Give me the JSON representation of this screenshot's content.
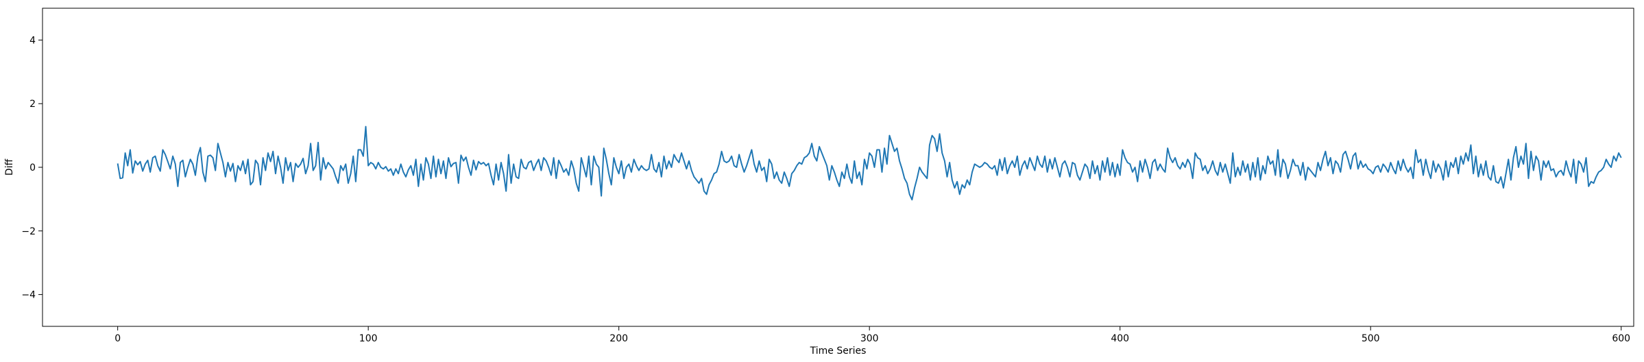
{
  "chart_data": {
    "type": "line",
    "title": "",
    "xlabel": "Time Series",
    "ylabel": "Diff",
    "xlim": [
      -30,
      605
    ],
    "ylim": [
      -5,
      5
    ],
    "xticks": [
      0,
      100,
      200,
      300,
      400,
      500,
      600
    ],
    "yticks": [
      -4,
      -2,
      0,
      2,
      4
    ],
    "grid": false,
    "legend": "none",
    "series": [
      {
        "color": "#1f77b4",
        "x_start": 0,
        "x_step": 1,
        "values": [
          0.12,
          -0.35,
          -0.33,
          0.45,
          0.05,
          0.55,
          -0.18,
          0.2,
          0.08,
          0.18,
          -0.12,
          0.1,
          0.22,
          -0.15,
          0.3,
          0.35,
          0.05,
          -0.12,
          0.55,
          0.4,
          0.18,
          -0.05,
          0.35,
          0.1,
          -0.6,
          0.15,
          0.22,
          -0.3,
          0.0,
          0.25,
          0.1,
          -0.25,
          0.35,
          0.62,
          -0.15,
          -0.45,
          0.35,
          0.38,
          0.3,
          -0.1,
          0.75,
          0.45,
          0.15,
          -0.3,
          0.15,
          -0.12,
          0.12,
          -0.45,
          0.05,
          -0.1,
          0.2,
          -0.2,
          0.25,
          -0.55,
          -0.45,
          0.22,
          0.1,
          -0.55,
          0.3,
          -0.1,
          0.45,
          0.18,
          0.5,
          -0.2,
          0.35,
          0.0,
          -0.5,
          0.3,
          -0.1,
          0.15,
          -0.45,
          0.12,
          0.0,
          0.1,
          0.28,
          -0.2,
          0.05,
          0.75,
          -0.1,
          0.05,
          0.78,
          -0.4,
          0.3,
          -0.05,
          0.15,
          0.05,
          -0.05,
          -0.3,
          -0.5,
          0.05,
          -0.1,
          0.1,
          -0.5,
          -0.2,
          0.35,
          -0.45,
          0.55,
          0.55,
          0.35,
          1.28,
          0.05,
          0.15,
          0.1,
          -0.05,
          0.15,
          0.0,
          -0.05,
          0.02,
          -0.12,
          -0.05,
          -0.25,
          -0.05,
          -0.2,
          0.1,
          -0.15,
          -0.3,
          -0.08,
          0.05,
          -0.25,
          0.25,
          -0.6,
          0.1,
          -0.4,
          0.3,
          0.1,
          -0.35,
          0.35,
          -0.3,
          0.25,
          -0.2,
          0.2,
          -0.35,
          0.3,
          0.02,
          0.12,
          0.15,
          -0.5,
          0.38,
          0.2,
          0.32,
          0.0,
          -0.25,
          0.22,
          -0.08,
          0.18,
          0.1,
          0.15,
          0.05,
          0.12,
          -0.25,
          -0.55,
          0.1,
          -0.4,
          0.15,
          -0.2,
          -0.75,
          0.4,
          -0.5,
          0.1,
          -0.3,
          -0.35,
          0.25,
          0.0,
          -0.05,
          0.15,
          0.2,
          -0.1,
          0.1,
          0.25,
          -0.1,
          0.3,
          0.2,
          0.0,
          -0.25,
          0.3,
          -0.35,
          0.22,
          0.05,
          -0.15,
          -0.05,
          -0.25,
          0.2,
          -0.05,
          -0.5,
          -0.75,
          0.3,
          0.0,
          -0.3,
          0.35,
          -0.55,
          0.35,
          0.1,
          0.0,
          -0.9,
          0.6,
          0.25,
          -0.2,
          -0.55,
          0.3,
          0.0,
          -0.2,
          0.2,
          -0.35,
          0.0,
          0.1,
          -0.15,
          0.25,
          0.05,
          -0.1,
          0.05,
          -0.05,
          -0.1,
          -0.05,
          0.4,
          -0.05,
          -0.15,
          0.15,
          -0.3,
          0.35,
          -0.05,
          0.2,
          0.0,
          0.4,
          0.25,
          0.15,
          0.45,
          0.2,
          -0.05,
          0.2,
          -0.1,
          -0.3,
          -0.4,
          -0.5,
          -0.35,
          -0.75,
          -0.85,
          -0.55,
          -0.4,
          -0.2,
          -0.15,
          0.1,
          0.5,
          0.2,
          0.15,
          0.2,
          0.35,
          0.05,
          0.0,
          0.4,
          0.1,
          -0.15,
          0.05,
          0.3,
          0.55,
          0.1,
          -0.15,
          0.2,
          -0.1,
          0.0,
          -0.45,
          0.25,
          0.1,
          -0.35,
          -0.15,
          -0.4,
          -0.5,
          -0.15,
          -0.35,
          -0.6,
          -0.2,
          -0.1,
          0.05,
          0.15,
          0.1,
          0.3,
          0.35,
          0.45,
          0.75,
          0.35,
          0.2,
          0.65,
          0.45,
          0.25,
          0.05,
          -0.4,
          0.05,
          -0.15,
          -0.4,
          -0.6,
          -0.15,
          -0.35,
          0.1,
          -0.3,
          -0.5,
          0.2,
          -0.35,
          -0.15,
          -0.55,
          0.25,
          -0.05,
          0.45,
          0.35,
          0.0,
          0.55,
          0.55,
          -0.15,
          0.6,
          0.1,
          1.0,
          0.75,
          0.5,
          0.6,
          0.2,
          -0.05,
          -0.35,
          -0.5,
          -0.85,
          -1.02,
          -0.65,
          -0.35,
          0.0,
          -0.15,
          -0.25,
          -0.35,
          0.7,
          1.0,
          0.9,
          0.5,
          1.05,
          0.45,
          0.2,
          -0.3,
          0.15,
          -0.4,
          -0.65,
          -0.45,
          -0.85,
          -0.55,
          -0.65,
          -0.4,
          -0.55,
          -0.15,
          0.1,
          0.05,
          0.0,
          0.05,
          0.15,
          0.1,
          0.0,
          -0.05,
          0.05,
          -0.25,
          0.25,
          -0.1,
          0.3,
          -0.2,
          0.05,
          0.2,
          0.0,
          0.35,
          -0.25,
          0.05,
          0.2,
          -0.05,
          0.3,
          0.1,
          -0.1,
          0.35,
          0.1,
          0.0,
          0.35,
          -0.15,
          0.25,
          -0.05,
          0.3,
          0.0,
          -0.3,
          0.1,
          0.2,
          0.0,
          -0.3,
          0.15,
          0.1,
          -0.25,
          -0.4,
          -0.15,
          0.1,
          0.0,
          -0.35,
          0.2,
          -0.2,
          0.05,
          -0.4,
          0.2,
          -0.15,
          0.3,
          -0.25,
          0.15,
          -0.3,
          0.1,
          -0.25,
          0.55,
          0.3,
          0.15,
          0.1,
          -0.15,
          0.0,
          -0.45,
          0.2,
          -0.15,
          0.25,
          0.0,
          -0.35,
          0.15,
          0.25,
          -0.1,
          0.1,
          -0.05,
          -0.15,
          0.6,
          0.3,
          0.15,
          0.3,
          0.05,
          -0.05,
          0.15,
          0.0,
          0.25,
          0.1,
          -0.35,
          0.45,
          0.3,
          0.25,
          -0.1,
          0.05,
          -0.2,
          -0.05,
          0.2,
          -0.1,
          -0.25,
          0.15,
          -0.15,
          0.1,
          -0.2,
          -0.5,
          0.45,
          -0.3,
          0.0,
          -0.25,
          0.2,
          -0.15,
          0.1,
          -0.4,
          0.15,
          -0.3,
          0.3,
          -0.4,
          0.05,
          -0.2,
          0.35,
          0.1,
          0.2,
          -0.25,
          0.55,
          -0.3,
          0.25,
          0.1,
          -0.35,
          -0.1,
          0.25,
          0.05,
          0.05,
          -0.25,
          0.15,
          -0.4,
          0.0,
          -0.1,
          -0.2,
          -0.3,
          0.15,
          -0.1,
          0.25,
          0.5,
          0.05,
          0.3,
          -0.2,
          0.2,
          0.1,
          -0.15,
          0.4,
          0.5,
          0.25,
          -0.05,
          0.35,
          0.45,
          -0.05,
          0.2,
          0.0,
          0.1,
          -0.05,
          -0.1,
          -0.2,
          0.0,
          0.05,
          -0.15,
          0.1,
          0.0,
          -0.15,
          0.15,
          -0.05,
          -0.2,
          0.2,
          -0.1,
          0.25,
          0.0,
          -0.15,
          0.0,
          -0.35,
          0.55,
          0.15,
          0.25,
          -0.25,
          0.25,
          -0.1,
          -0.35,
          0.2,
          -0.15,
          0.1,
          -0.05,
          -0.4,
          0.2,
          -0.3,
          0.15,
          0.0,
          0.3,
          -0.2,
          0.35,
          0.1,
          0.45,
          0.2,
          0.7,
          -0.2,
          0.35,
          -0.3,
          0.1,
          -0.25,
          0.2,
          -0.3,
          -0.4,
          0.05,
          -0.45,
          -0.5,
          -0.3,
          -0.65,
          -0.2,
          0.25,
          -0.4,
          0.3,
          0.65,
          0.0,
          0.35,
          0.1,
          0.75,
          -0.35,
          0.5,
          -0.1,
          0.35,
          0.2,
          -0.4,
          0.2,
          0.0,
          0.2,
          -0.1,
          -0.05,
          -0.3,
          -0.15,
          -0.1,
          -0.25,
          0.2,
          -0.1,
          -0.3,
          0.25,
          -0.5,
          0.2,
          0.1,
          -0.15,
          0.3,
          -0.6,
          -0.45,
          -0.5,
          -0.3,
          -0.15,
          -0.1,
          0.0,
          0.25,
          0.1,
          0.0,
          0.35,
          0.2,
          0.45,
          0.3
        ]
      }
    ]
  }
}
